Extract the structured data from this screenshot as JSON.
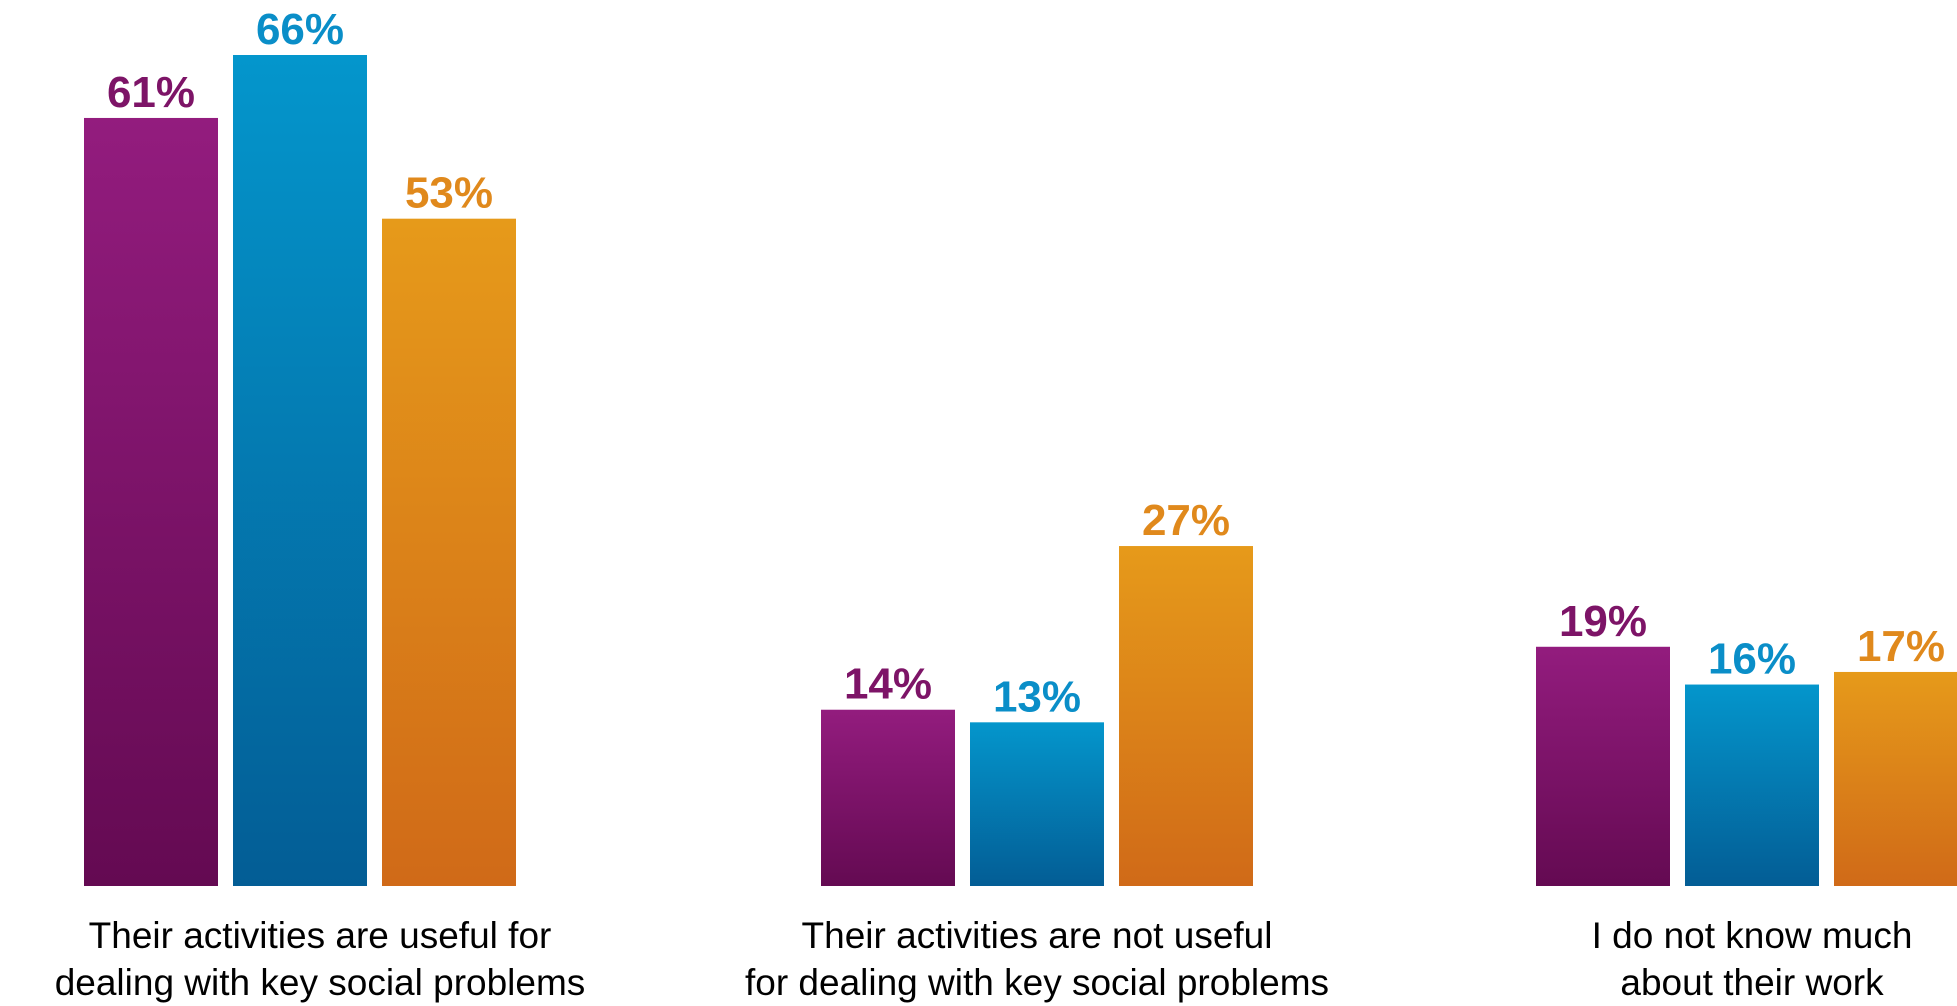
{
  "chart_data": {
    "type": "bar",
    "categories": [
      [
        "Their activities are useful for",
        "dealing with key social problems"
      ],
      [
        "Their activities are not useful",
        "for dealing with key social problems"
      ],
      [
        "I do not know much",
        "about their work"
      ]
    ],
    "series": [
      {
        "values": [
          61,
          14,
          19
        ],
        "labels": [
          "61%",
          "14%",
          "19%"
        ],
        "color": "#7d1467",
        "gradient": [
          "#931c7e",
          "#640a52"
        ]
      },
      {
        "values": [
          66,
          13,
          16
        ],
        "labels": [
          "66%",
          "13%",
          "16%"
        ],
        "color": "#0a8ec8",
        "gradient": [
          "#0496cc",
          "#035d95"
        ]
      },
      {
        "values": [
          53,
          27,
          17
        ],
        "labels": [
          "53%",
          "27%",
          "17%"
        ],
        "color": "#e0891c",
        "gradient": [
          "#e69a1a",
          "#d06a18"
        ]
      }
    ],
    "value_suffix": "%",
    "ylim": [
      0,
      66
    ],
    "grid": false,
    "legend": "none"
  }
}
